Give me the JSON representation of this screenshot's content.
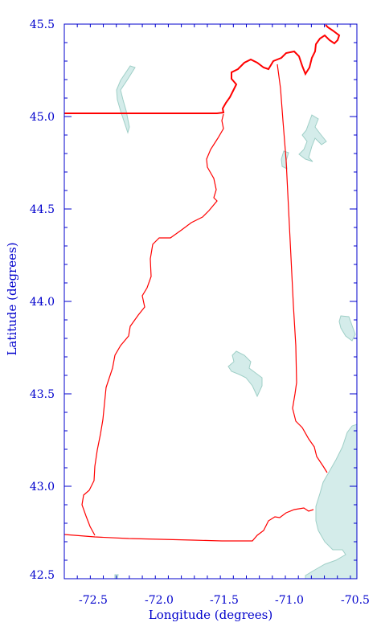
{
  "axes": {
    "xlabel": "Longitude (degrees)",
    "ylabel": "Latitude (degrees)",
    "xlim": [
      -72.75,
      -70.5
    ],
    "ylim": [
      42.5,
      45.5
    ],
    "x_ticks": [
      "-72.5",
      "-72.0",
      "-71.5",
      "-71.0",
      "-70.5"
    ],
    "y_ticks": [
      "45.5",
      "45.0",
      "44.5",
      "44.0",
      "43.5",
      "43.0",
      "42.5"
    ]
  },
  "colors": {
    "frame": "#0000cc",
    "border": "#ff0000",
    "water": "#d4ecea",
    "water_edge": "#9fcfc7"
  }
}
